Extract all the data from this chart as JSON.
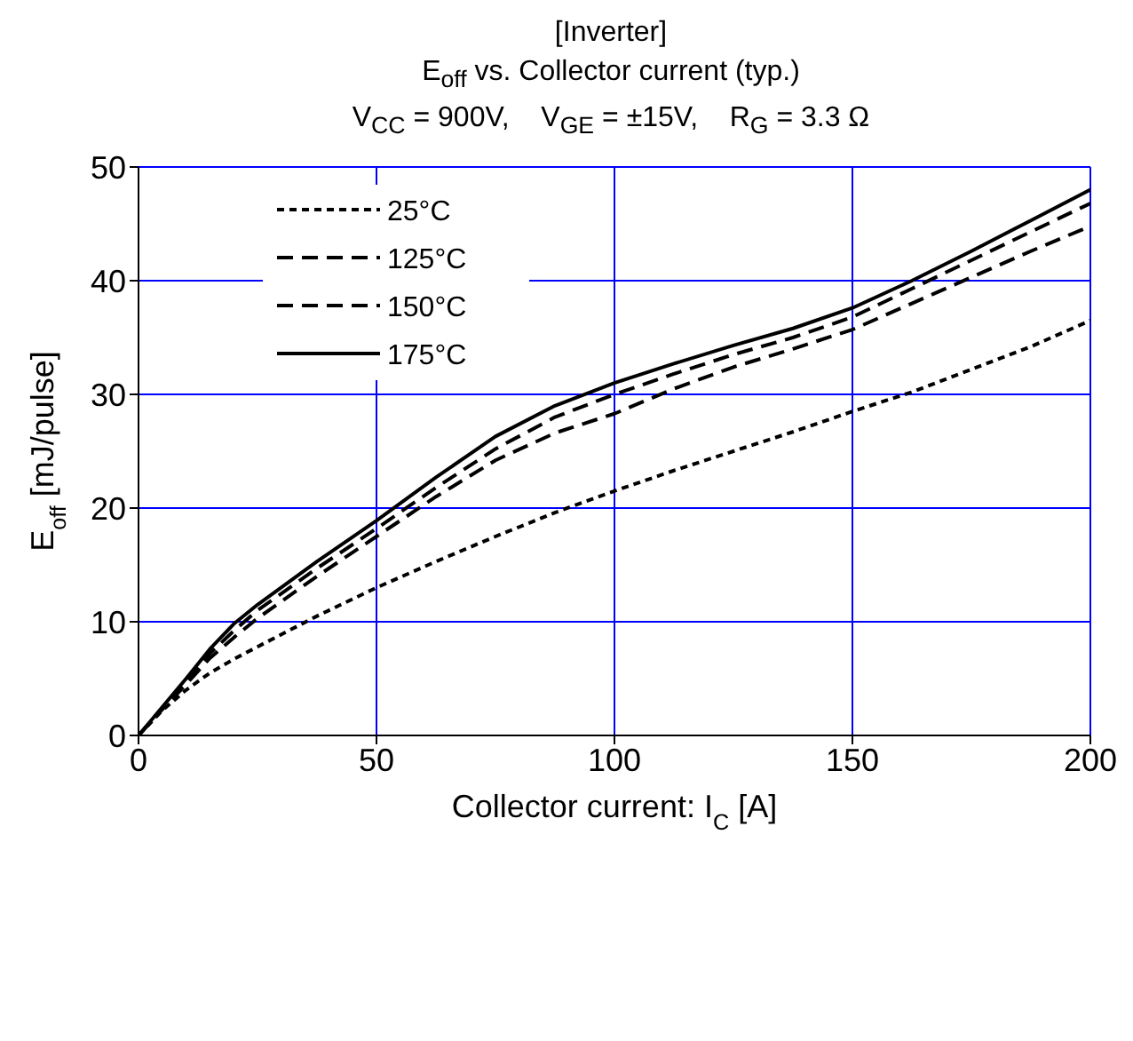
{
  "chart_data": {
    "type": "line",
    "title": "[Inverter]",
    "subtitle": "E$_{off}$ vs. Collector current  (typ.)",
    "annotations": [
      "V$_{CC}$ = 900V,    V$_{GE}$ = ±15V,    R$_{G}$ = 3.3 Ω"
    ],
    "xlabel": "Collector current: I$_{C}$ [A]",
    "ylabel": "E$_{off}$ [mJ/pulse]",
    "xlim": [
      0,
      200
    ],
    "xticks": [
      0,
      50,
      100,
      150,
      200
    ],
    "ylim": [
      0,
      50
    ],
    "yticks": [
      0,
      10,
      20,
      30,
      40,
      50
    ],
    "grid": true,
    "legend": "top left",
    "marker": "none",
    "x": [
      0,
      5,
      10,
      15,
      20,
      25,
      37.5,
      50,
      62.5,
      75,
      87.5,
      100,
      112.5,
      125,
      137.5,
      150,
      162.5,
      175,
      187.5,
      200
    ],
    "series": [
      {
        "name": "25°C",
        "color": "#000000",
        "line_style": "dotted",
        "values": [
          0,
          2.2,
          4,
          5.5,
          6.7,
          7.8,
          10.5,
          13,
          15.3,
          17.5,
          19.6,
          21.5,
          23.3,
          25,
          26.7,
          28.5,
          30.2,
          32.2,
          34.2,
          36.5
        ]
      },
      {
        "name": "125°C",
        "color": "#000000",
        "line_style": "dashed",
        "values": [
          0,
          2.3,
          4.5,
          6.8,
          8.6,
          10.3,
          14,
          17.5,
          21,
          24.2,
          26.6,
          28.3,
          30.5,
          32.4,
          34,
          35.7,
          38,
          40.3,
          42.6,
          44.8
        ]
      },
      {
        "name": "150°C",
        "color": "#000000",
        "line_style": "dashed",
        "values": [
          0,
          2.4,
          4.8,
          7.2,
          9.2,
          11,
          14.7,
          18.2,
          21.8,
          25.2,
          28,
          30,
          31.8,
          33.5,
          35,
          36.8,
          39.3,
          41.8,
          44.3,
          46.8
        ]
      },
      {
        "name": "175°C",
        "color": "#000000",
        "line_style": "solid",
        "values": [
          0,
          2.5,
          5,
          7.6,
          9.8,
          11.5,
          15.3,
          18.9,
          22.7,
          26.3,
          29,
          31,
          32.7,
          34.3,
          35.8,
          37.6,
          40,
          42.6,
          45.3,
          48
        ]
      }
    ]
  }
}
